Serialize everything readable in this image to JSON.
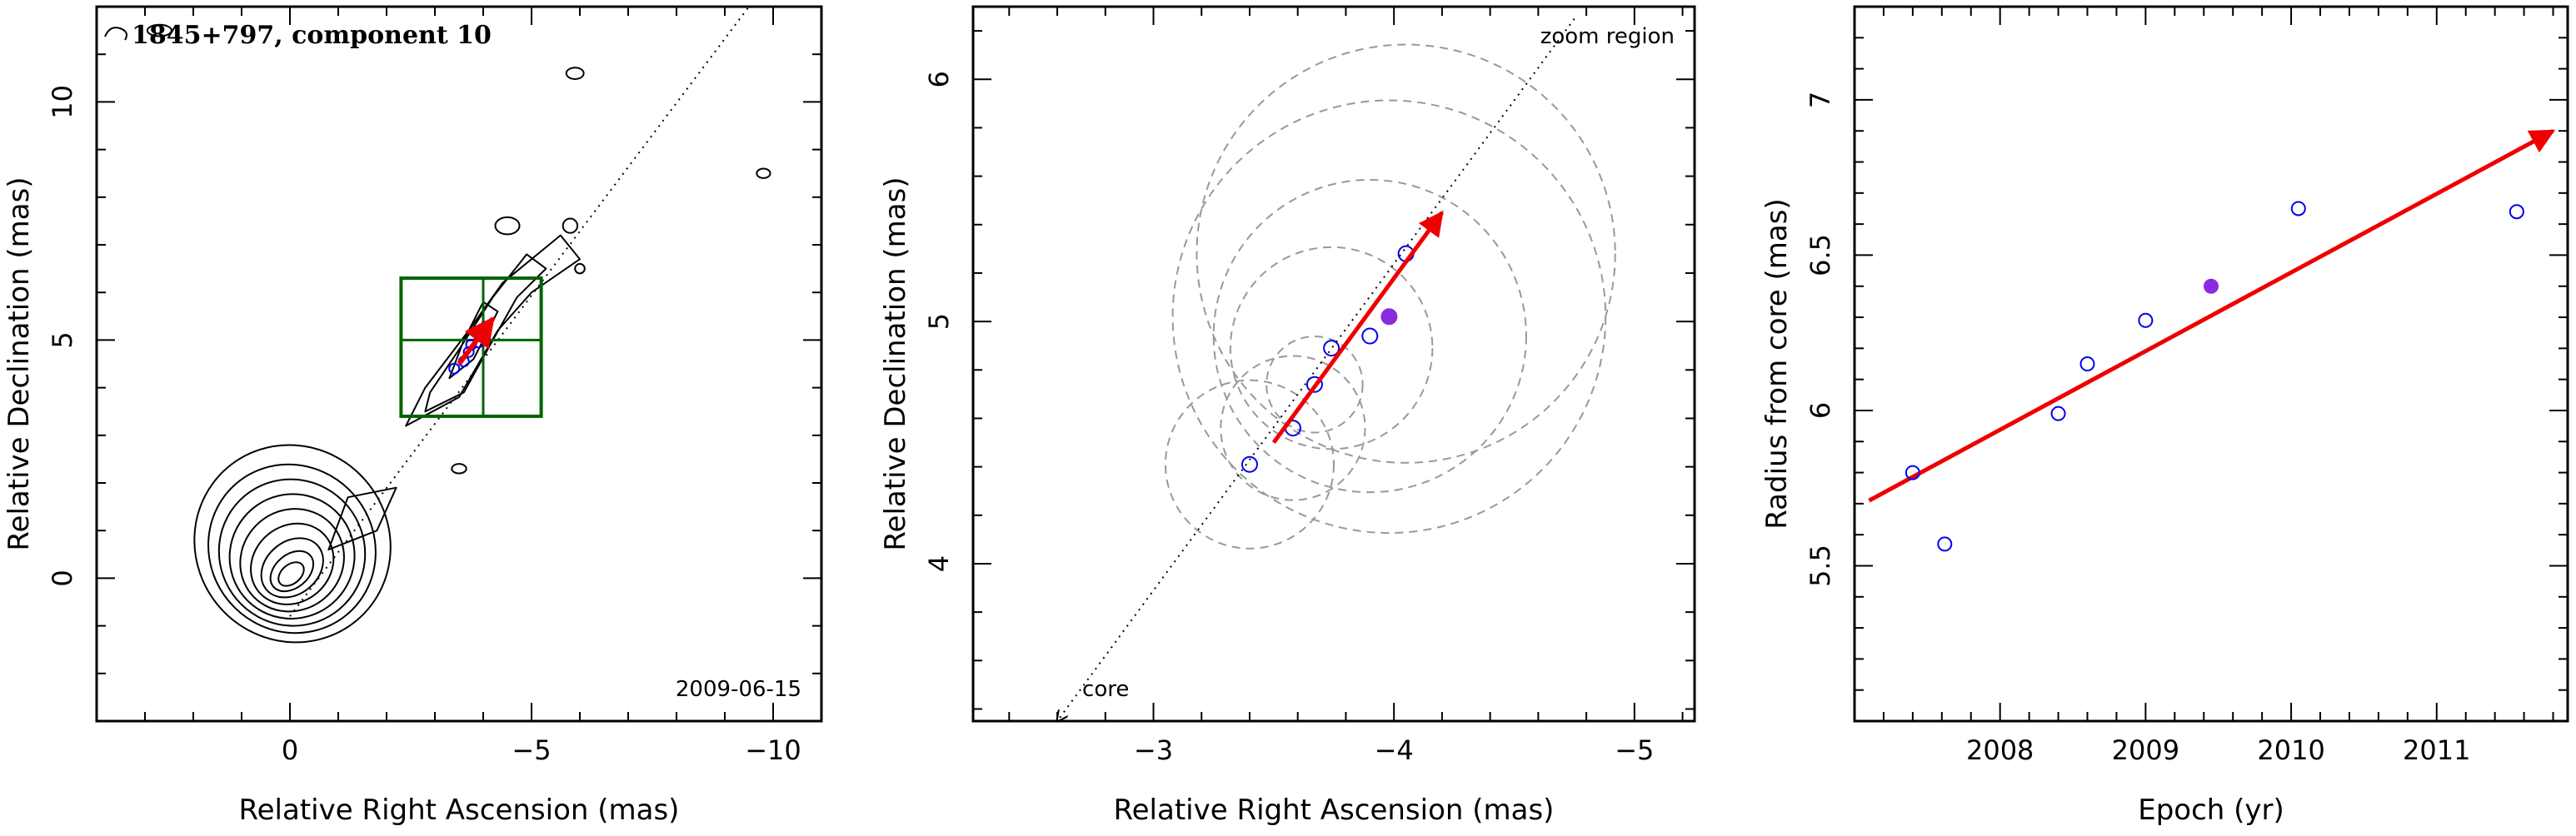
{
  "chart_data": [
    {
      "type": "contour",
      "title": "1845+797, component 10",
      "date": "2009-06-15",
      "xlabel": "Relative Right Ascension (mas)",
      "ylabel": "Relative Declination (mas)",
      "xlim": [
        4.0,
        -11.0
      ],
      "ylim": [
        -3.0,
        12.0
      ],
      "x_ticks": [
        0,
        -5,
        -10
      ],
      "y_ticks": [
        0,
        5,
        10
      ],
      "x_tick_labels": [
        "0",
        "−5",
        "−10"
      ],
      "y_tick_labels": [
        "0",
        "5",
        "10"
      ],
      "core_contours": {
        "center": [
          0,
          0
        ],
        "rx": [
          0.3,
          0.5,
          0.7,
          0.9,
          1.1,
          1.3,
          1.5,
          1.7,
          2.0
        ],
        "ry": [
          0.2,
          0.35,
          0.55,
          0.8,
          1.05,
          1.3,
          1.55,
          1.8,
          2.1
        ]
      },
      "jet_axis": {
        "from": [
          0.0,
          -0.8
        ],
        "to": [
          -9.5,
          12.0
        ]
      },
      "zoom_region": {
        "ra": [
          -2.3,
          -5.2
        ],
        "dec": [
          3.4,
          6.3
        ],
        "grid_ra": -4.0,
        "grid_dec": 5.0
      },
      "component_points": [
        [
          -3.4,
          4.4
        ],
        [
          -3.6,
          4.55
        ],
        [
          -3.7,
          4.75
        ],
        [
          -3.75,
          4.9
        ],
        [
          -3.9,
          4.95
        ],
        [
          -4.05,
          5.28
        ]
      ],
      "motion_arrow": {
        "from": [
          -3.5,
          4.5
        ],
        "to": [
          -4.2,
          5.45
        ]
      }
    },
    {
      "type": "scatter",
      "xlabel": "Relative Right Ascension (mas)",
      "ylabel": "Relative Declination (mas)",
      "xlim": [
        -2.25,
        -5.25
      ],
      "ylim": [
        3.35,
        6.3
      ],
      "x_ticks": [
        -3,
        -4,
        -5
      ],
      "y_ticks": [
        4,
        5,
        6
      ],
      "x_tick_labels": [
        "−3",
        "−4",
        "−5"
      ],
      "y_tick_labels": [
        "4",
        "5",
        "6"
      ],
      "annotations": {
        "zoom": "zoom region",
        "core": "core"
      },
      "points_open": [
        [
          -3.4,
          4.41
        ],
        [
          -3.58,
          4.56
        ],
        [
          -3.67,
          4.74
        ],
        [
          -3.74,
          4.89
        ],
        [
          -3.9,
          4.94
        ],
        [
          -4.05,
          5.28
        ]
      ],
      "point_filled": [
        -3.98,
        5.02
      ],
      "error_circles": [
        {
          "ra": -3.4,
          "dec": 4.41,
          "r": 0.35
        },
        {
          "ra": -3.58,
          "dec": 4.56,
          "r": 0.3
        },
        {
          "ra": -3.67,
          "dec": 4.74,
          "r": 0.2
        },
        {
          "ra": -3.74,
          "dec": 4.89,
          "r": 0.42
        },
        {
          "ra": -3.9,
          "dec": 4.94,
          "r": 0.65
        },
        {
          "ra": -4.05,
          "dec": 5.28,
          "r": 0.87
        },
        {
          "ra": -3.98,
          "dec": 5.02,
          "r": 0.9
        }
      ],
      "jet_axis": {
        "from": [
          -2.6,
          3.35
        ],
        "to": [
          -4.75,
          6.25
        ]
      },
      "motion_arrow": {
        "from": [
          -3.5,
          4.5
        ],
        "to": [
          -4.2,
          5.45
        ]
      }
    },
    {
      "type": "scatter",
      "xlabel": "Epoch (yr)",
      "ylabel": "Radius from core (mas)",
      "xlim": [
        2007.0,
        2011.9
      ],
      "ylim": [
        5.0,
        7.3
      ],
      "x_ticks": [
        2008,
        2009,
        2010,
        2011
      ],
      "y_ticks": [
        5.5,
        6,
        6.5,
        7
      ],
      "x_tick_labels": [
        "2008",
        "2009",
        "2010",
        "2011"
      ],
      "y_tick_labels": [
        "5.5",
        "6",
        "6.5",
        "7"
      ],
      "points_open": [
        [
          2007.4,
          5.8
        ],
        [
          2007.62,
          5.57
        ],
        [
          2008.4,
          5.99
        ],
        [
          2008.6,
          6.15
        ],
        [
          2009.0,
          6.29
        ],
        [
          2010.05,
          6.65
        ],
        [
          2011.55,
          6.64
        ]
      ],
      "point_filled": [
        2009.45,
        6.4
      ],
      "fit_line": {
        "from": [
          2007.1,
          5.71
        ],
        "to": [
          2011.8,
          6.9
        ]
      }
    }
  ]
}
